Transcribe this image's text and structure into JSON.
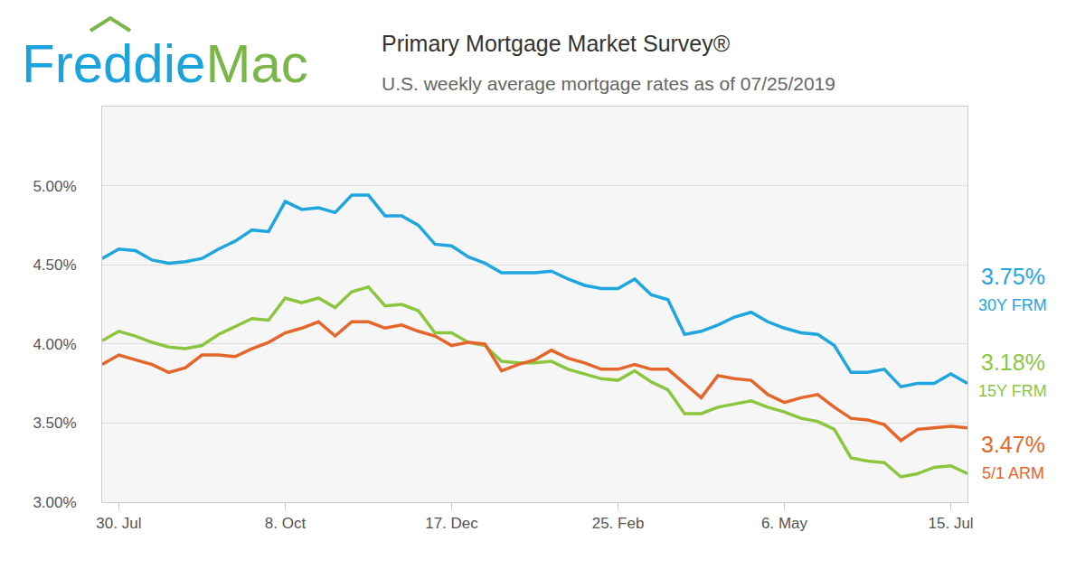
{
  "chart_data": {
    "type": "line",
    "logo": [
      "Freddie",
      "Mac"
    ],
    "title": "Primary Mortgage Market Survey®",
    "subtitle": "U.S. weekly average mortgage rates as of 07/25/2019",
    "categories": [
      null,
      "30. Jul",
      null,
      null,
      null,
      null,
      null,
      null,
      null,
      null,
      null,
      "8. Oct",
      null,
      null,
      null,
      null,
      null,
      null,
      null,
      null,
      null,
      "17. Dec",
      null,
      null,
      null,
      null,
      null,
      null,
      null,
      null,
      null,
      "25. Feb",
      null,
      null,
      null,
      null,
      null,
      null,
      null,
      null,
      null,
      "6. May",
      null,
      null,
      null,
      null,
      null,
      null,
      null,
      null,
      null,
      "15. Jul",
      null
    ],
    "series": [
      {
        "name": "30Y FRM",
        "color": "#1fa6df",
        "values": [
          4.54,
          4.6,
          4.59,
          4.53,
          4.51,
          4.52,
          4.54,
          4.6,
          4.65,
          4.72,
          4.71,
          4.9,
          4.85,
          4.86,
          4.83,
          4.94,
          4.94,
          4.81,
          4.81,
          4.75,
          4.63,
          4.62,
          4.55,
          4.51,
          4.45,
          4.45,
          4.45,
          4.46,
          4.41,
          4.37,
          4.35,
          4.35,
          4.41,
          4.31,
          4.28,
          4.06,
          4.08,
          4.12,
          4.17,
          4.2,
          4.14,
          4.1,
          4.07,
          4.06,
          3.99,
          3.82,
          3.82,
          3.84,
          3.73,
          3.75,
          3.75,
          3.81,
          3.75
        ],
        "value_labels": [
          null,
          null,
          null,
          null,
          null,
          null,
          null,
          null,
          null,
          null,
          null,
          null,
          null,
          null,
          null,
          null,
          null,
          null,
          null,
          null,
          null,
          null,
          null,
          null,
          null,
          null,
          null,
          null,
          null,
          null,
          null,
          null,
          null,
          null,
          null,
          null,
          null,
          null,
          null,
          null,
          null,
          null,
          null,
          null,
          null,
          null,
          null,
          null,
          null,
          null,
          null,
          null,
          "3.75%"
        ]
      },
      {
        "name": "15Y FRM",
        "color": "#8cc63f",
        "values": [
          4.02,
          4.08,
          4.05,
          4.01,
          3.98,
          3.97,
          3.99,
          4.06,
          4.11,
          4.16,
          4.15,
          4.29,
          4.26,
          4.29,
          4.23,
          4.33,
          4.36,
          4.24,
          4.25,
          4.21,
          4.07,
          4.07,
          4.01,
          3.99,
          3.89,
          3.88,
          3.88,
          3.89,
          3.84,
          3.81,
          3.78,
          3.77,
          3.83,
          3.76,
          3.71,
          3.56,
          3.56,
          3.6,
          3.62,
          3.64,
          3.6,
          3.57,
          3.53,
          3.51,
          3.46,
          3.28,
          3.26,
          3.25,
          3.16,
          3.18,
          3.22,
          3.23,
          3.18
        ],
        "value_labels": [
          null,
          null,
          null,
          null,
          null,
          null,
          null,
          null,
          null,
          null,
          null,
          null,
          null,
          null,
          null,
          null,
          null,
          null,
          null,
          null,
          null,
          null,
          null,
          null,
          null,
          null,
          null,
          null,
          null,
          null,
          null,
          null,
          null,
          null,
          null,
          null,
          null,
          null,
          null,
          null,
          null,
          null,
          null,
          null,
          null,
          null,
          null,
          null,
          null,
          null,
          null,
          null,
          "3.18%"
        ]
      },
      {
        "name": "5/1 ARM",
        "color": "#e5662a",
        "values": [
          3.87,
          3.93,
          3.9,
          3.87,
          3.82,
          3.85,
          3.93,
          3.93,
          3.92,
          3.97,
          4.01,
          4.07,
          4.1,
          4.14,
          4.05,
          4.14,
          4.14,
          4.1,
          4.12,
          4.08,
          4.05,
          3.99,
          4.01,
          4.0,
          3.83,
          3.87,
          3.9,
          3.96,
          3.91,
          3.88,
          3.84,
          3.84,
          3.87,
          3.84,
          3.84,
          3.75,
          3.66,
          3.8,
          3.78,
          3.77,
          3.68,
          3.63,
          3.66,
          3.68,
          3.6,
          3.53,
          3.52,
          3.49,
          3.39,
          3.46,
          3.47,
          3.48,
          3.47
        ],
        "value_labels": [
          null,
          null,
          null,
          null,
          null,
          null,
          null,
          null,
          null,
          null,
          null,
          null,
          null,
          null,
          null,
          null,
          null,
          null,
          null,
          null,
          null,
          null,
          null,
          null,
          null,
          null,
          null,
          null,
          null,
          null,
          null,
          null,
          null,
          null,
          null,
          null,
          null,
          null,
          null,
          null,
          null,
          null,
          null,
          null,
          null,
          null,
          null,
          null,
          null,
          null,
          null,
          null,
          "3.47%"
        ]
      }
    ],
    "ylim": [
      3.0,
      5.5
    ],
    "yticks": [
      {
        "value": 3.0,
        "label": "3.00%"
      },
      {
        "value": 3.5,
        "label": "3.50%"
      },
      {
        "value": 4.0,
        "label": "4.00%"
      },
      {
        "value": 4.5,
        "label": "4.50%"
      },
      {
        "value": 5.0,
        "label": "5.00%"
      }
    ],
    "grid": true,
    "legend": false
  }
}
